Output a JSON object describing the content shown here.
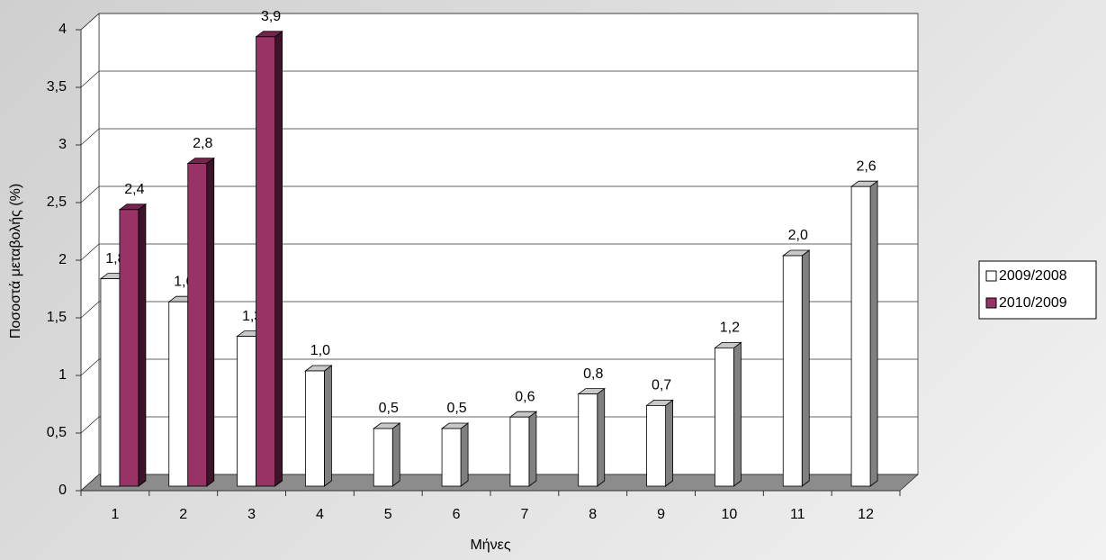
{
  "chart_data": {
    "type": "bar3d",
    "y_label": "Ποσοστά μεταβολής (%)",
    "x_label": "Μήνες",
    "categories": [
      "1",
      "2",
      "3",
      "4",
      "5",
      "6",
      "7",
      "8",
      "9",
      "10",
      "11",
      "12"
    ],
    "series": [
      {
        "name": "2009/2008",
        "color": "#ffffff",
        "values": [
          1.8,
          1.6,
          1.3,
          1.0,
          0.5,
          0.5,
          0.6,
          0.8,
          0.7,
          1.2,
          2.0,
          2.6
        ],
        "value_labels": [
          "1,8",
          "1,6",
          "1,3",
          "1,0",
          "0,5",
          "0,5",
          "0,6",
          "0,8",
          "0,7",
          "1,2",
          "2,0",
          "2,6"
        ]
      },
      {
        "name": "2010/2009",
        "color": "#993366",
        "values": [
          2.4,
          2.8,
          3.9,
          null,
          null,
          null,
          null,
          null,
          null,
          null,
          null,
          null
        ],
        "value_labels": [
          "2,4",
          "2,8",
          "3,9",
          null,
          null,
          null,
          null,
          null,
          null,
          null,
          null,
          null
        ]
      }
    ],
    "ylim": [
      0,
      4
    ],
    "yticks": [
      0,
      {
        "value": 0.5,
        "label": "0,5"
      },
      1,
      {
        "value": 1.5,
        "label": "1,5"
      },
      2,
      {
        "value": 2.5,
        "label": "2,5"
      },
      3,
      {
        "value": 3.5,
        "label": "3,5"
      },
      4
    ],
    "grid": true,
    "legend": "right"
  }
}
